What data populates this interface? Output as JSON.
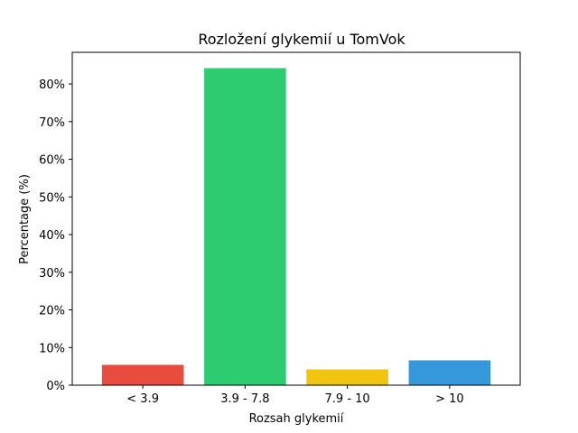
{
  "chart_data": {
    "type": "bar",
    "title": "Rozložení glykemií u  TomVok",
    "xlabel": "Rozsah glykemií",
    "ylabel": "Percentage (%)",
    "categories": [
      "< 3.9",
      "3.9 - 7.8",
      "7.9 - 10",
      "> 10"
    ],
    "values": [
      5.4,
      84.2,
      4.2,
      6.6
    ],
    "colors": [
      "#e74c3c",
      "#2ecc71",
      "#f1c40f",
      "#3498db"
    ],
    "ylim": [
      0,
      88.4
    ],
    "yticks": [
      0,
      10,
      20,
      30,
      40,
      50,
      60,
      70,
      80
    ],
    "ytick_format": "{v}%",
    "grid": false,
    "legend": "none"
  }
}
